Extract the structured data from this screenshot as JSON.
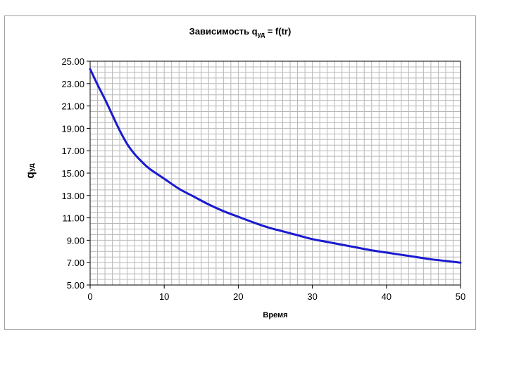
{
  "chart_data": {
    "type": "line",
    "title": "Зависимость q",
    "title_subscript": "уд",
    "title_suffix": " = f(tr)",
    "xlabel": "Время",
    "ylabel": "q",
    "ylabel_subscript": "уд",
    "xlim": [
      0,
      50
    ],
    "ylim": [
      5,
      25
    ],
    "x_ticks": [
      "0",
      "10",
      "20",
      "30",
      "40",
      "50"
    ],
    "y_ticks": [
      "5.00",
      "7.00",
      "9.00",
      "11.00",
      "13.00",
      "15.00",
      "17.00",
      "19.00",
      "21.00",
      "23.00",
      "25.00"
    ],
    "grid": true,
    "legend": "none",
    "series": [
      {
        "color": "#1a1ad0",
        "x": [
          0,
          1,
          2,
          3,
          4,
          5,
          6,
          7,
          8,
          10,
          12,
          14,
          16,
          18,
          20,
          22,
          24,
          26,
          28,
          30,
          32,
          34,
          36,
          38,
          40,
          42,
          44,
          46,
          48,
          50
        ],
        "y": [
          24.3,
          22.9,
          21.6,
          20.2,
          18.8,
          17.6,
          16.7,
          16.0,
          15.4,
          14.5,
          13.6,
          12.9,
          12.2,
          11.6,
          11.1,
          10.6,
          10.15,
          9.8,
          9.45,
          9.1,
          8.85,
          8.6,
          8.35,
          8.1,
          7.9,
          7.7,
          7.5,
          7.3,
          7.15,
          7.0
        ]
      }
    ]
  }
}
